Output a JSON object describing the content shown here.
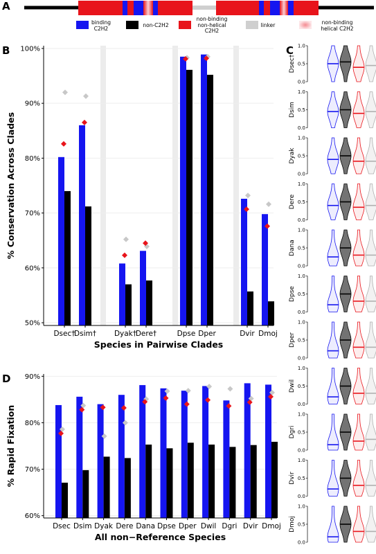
{
  "panel_labels": [
    "A",
    "B",
    "C",
    "D"
  ],
  "domain_legend": [
    {
      "label": "binding C2H2",
      "color": "#1515f0"
    },
    {
      "label": "non-C2H2",
      "color": "#000000"
    },
    {
      "label": "non-binding non-helical C2H2",
      "color": "#e8141b"
    },
    {
      "label": "linker",
      "color": "#cfcfcf"
    },
    {
      "label": "non-binding helical C2H2",
      "color": "#f5a3a8"
    }
  ],
  "chart_data": [
    {
      "type": "bar",
      "y_label": "% Conservation Across Clades",
      "x_label": "Species in Pairwise Clades",
      "categories": [
        "Dsec†",
        "Dsim†",
        "Dyak†",
        "Dere†",
        "Dpse",
        "Dper",
        "Dvir",
        "Dmoj"
      ],
      "series": [
        {
          "type": "bar",
          "color": "#1515f0",
          "values": [
            80.2,
            86.0,
            60.8,
            63.1,
            98.5,
            98.9,
            72.6,
            69.8
          ]
        },
        {
          "type": "bar",
          "color": "#000000",
          "values": [
            74.0,
            71.2,
            57.0,
            57.7,
            96.1,
            95.2,
            55.7,
            53.9
          ]
        },
        {
          "type": "scatter",
          "color": "#c8c8c8",
          "values": [
            92.0,
            91.3,
            65.2,
            63.9,
            98.3,
            98.5,
            73.2,
            71.6
          ]
        },
        {
          "type": "scatter",
          "color": "#e8141b",
          "values": [
            82.6,
            86.5,
            62.3,
            64.5,
            98.1,
            98.2,
            70.7,
            67.6
          ]
        }
      ],
      "ylim": [
        49.5,
        100.5
      ],
      "yticks": [
        {
          "value": 50,
          "label": "50%"
        },
        {
          "value": 60,
          "label": "60%"
        },
        {
          "value": 70,
          "label": "70%"
        },
        {
          "value": 80,
          "label": "80%"
        },
        {
          "value": 90,
          "label": "90%"
        },
        {
          "value": 100,
          "label": "100%"
        }
      ],
      "grid": true
    },
    {
      "type": "violin",
      "categories": [
        "Dsec†",
        "Dsim",
        "Dyak",
        "Dere",
        "Dana",
        "Dpse",
        "Dper",
        "Dwil",
        "Dgri",
        "Dvir",
        "Dmoj"
      ],
      "series": [
        {
          "color": "#1515f0",
          "values": [
            0.5,
            0.45,
            0.4,
            0.4,
            0.25,
            0.2,
            0.2,
            0.2,
            0.15,
            0.2,
            0.15
          ]
        },
        {
          "color": "#000000",
          "values": [
            0.55,
            0.5,
            0.5,
            0.5,
            0.5,
            0.5,
            0.5,
            0.5,
            0.5,
            0.5,
            0.5
          ]
        },
        {
          "color": "#e8141b",
          "values": [
            0.4,
            0.4,
            0.35,
            0.35,
            0.3,
            0.3,
            0.3,
            0.3,
            0.25,
            0.3,
            0.3
          ]
        },
        {
          "color": "#b0b0b0",
          "values": [
            0.45,
            0.45,
            0.35,
            0.4,
            0.3,
            0.3,
            0.3,
            0.3,
            0.3,
            0.3,
            0.3
          ]
        }
      ],
      "ylim": [
        0,
        1
      ],
      "yticks": [
        {
          "value": 0,
          "label": "0.0"
        },
        {
          "value": 0.5,
          "label": "0.5"
        },
        {
          "value": 1,
          "label": "1.0"
        }
      ]
    },
    {
      "type": "bar",
      "y_label": "% Rapid Fixation",
      "x_label": "All non−Reference Species",
      "categories": [
        "Dsec",
        "Dsim",
        "Dyak",
        "Dere",
        "Dana",
        "Dpse",
        "Dper",
        "Dwil",
        "Dgri",
        "Dvir",
        "Dmoj"
      ],
      "series": [
        {
          "type": "bar",
          "color": "#1515f0",
          "values": [
            83.8,
            85.6,
            84.0,
            86.0,
            88.1,
            87.4,
            86.9,
            87.9,
            84.8,
            88.5,
            88.2
          ]
        },
        {
          "type": "bar",
          "color": "#000000",
          "values": [
            67.1,
            69.8,
            72.7,
            72.4,
            75.3,
            74.5,
            75.7,
            75.3,
            74.8,
            75.2,
            75.9
          ]
        },
        {
          "type": "scatter",
          "color": "#c8c8c8",
          "values": [
            78.6,
            83.7,
            77.1,
            80.0,
            85.1,
            86.8,
            86.9,
            87.8,
            87.3,
            85.2,
            86.5
          ]
        },
        {
          "type": "scatter",
          "color": "#e8141b",
          "values": [
            77.7,
            82.8,
            83.3,
            83.2,
            84.5,
            85.3,
            84.0,
            84.9,
            83.6,
            84.4,
            85.6
          ]
        }
      ],
      "ylim": [
        59.5,
        90.5
      ],
      "yticks": [
        {
          "value": 60,
          "label": "60%"
        },
        {
          "value": 70,
          "label": "70%"
        },
        {
          "value": 80,
          "label": "80%"
        },
        {
          "value": 90,
          "label": "90%"
        }
      ],
      "grid": true
    }
  ]
}
